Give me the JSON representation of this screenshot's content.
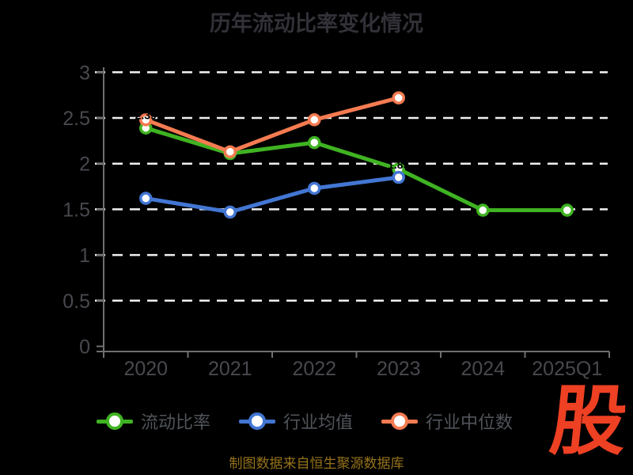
{
  "source_note": "制图数据来自恒生聚源数据库",
  "logo": {
    "text": "股",
    "color": "#ee4023"
  },
  "colors": {
    "background": "#000000",
    "title": "#313138",
    "axis_line": "#6f6f6f",
    "grid_line": "#f0f0f0",
    "axis_tick_label": "#48484e",
    "legend_text": "#50545a",
    "source_text": "#96731a",
    "marker_fill": "#ffffff",
    "point_label": "#000000"
  },
  "chart_data": {
    "type": "line",
    "title": "历年流动比率变化情况",
    "categories": [
      "2020",
      "2021",
      "2022",
      "2023",
      "2024",
      "2025Q1"
    ],
    "series": [
      {
        "name": "流动比率",
        "color": "#3fb322",
        "values": [
          2.39,
          2.11,
          2.23,
          1.94,
          1.49,
          1.49
        ]
      },
      {
        "name": "行业均值",
        "color": "#4276d3",
        "values": [
          1.62,
          1.47,
          1.73,
          1.85,
          null,
          null
        ]
      },
      {
        "name": "行业中位数",
        "color": "#f57b51",
        "values": [
          2.48,
          2.13,
          2.48,
          2.72,
          null,
          null
        ]
      }
    ],
    "ylim": [
      0,
      3
    ],
    "yticks": [
      0,
      0.5,
      1,
      1.5,
      2,
      2.5,
      3
    ],
    "grid": true,
    "grid_style": "dashed",
    "legend_position": "bottom",
    "point_labels_color": "#000000"
  }
}
